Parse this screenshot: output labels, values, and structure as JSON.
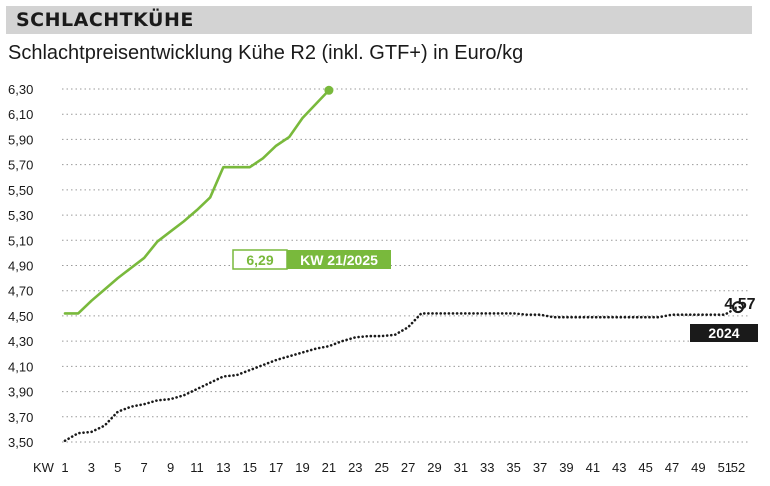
{
  "header": {
    "title": "SCHLACHTKÜHE"
  },
  "subtitle": "Schlachtpreisentwicklung Kühe R2 (inkl. GTF+) in Euro/kg",
  "colors": {
    "green": "#79b93c",
    "black": "#1a1a1a",
    "grid": "#9a9a9a",
    "header_bg": "#d3d3d3"
  },
  "chart_data": {
    "type": "line",
    "title": "",
    "xlabel": "KW",
    "ylabel": "",
    "xlim": [
      1,
      52
    ],
    "ylim": [
      3.5,
      6.3
    ],
    "grid": true,
    "y_ticks": [
      "3,50",
      "3,70",
      "3,90",
      "4,10",
      "4,30",
      "4,50",
      "4,70",
      "4,90",
      "5,10",
      "5,30",
      "5,50",
      "5,70",
      "5,90",
      "6,10",
      "6,30"
    ],
    "x_ticks": [
      "1",
      "3",
      "5",
      "7",
      "9",
      "11",
      "13",
      "15",
      "17",
      "19",
      "21",
      "23",
      "25",
      "27",
      "29",
      "31",
      "33",
      "35",
      "37",
      "39",
      "41",
      "43",
      "45",
      "47",
      "49",
      "51",
      "52"
    ],
    "series": [
      {
        "name": "2025",
        "style": "solid",
        "color": "#79b93c",
        "x": [
          1,
          2,
          3,
          4,
          5,
          6,
          7,
          8,
          9,
          10,
          11,
          12,
          13,
          14,
          15,
          16,
          17,
          18,
          19,
          20,
          21
        ],
        "y": [
          4.52,
          4.52,
          4.62,
          4.71,
          4.8,
          4.88,
          4.96,
          5.09,
          5.17,
          5.25,
          5.34,
          5.44,
          5.68,
          5.68,
          5.68,
          5.75,
          5.85,
          5.92,
          6.07,
          6.18,
          6.29
        ]
      },
      {
        "name": "2024",
        "style": "dotted",
        "color": "#1a1a1a",
        "x": [
          1,
          2,
          3,
          4,
          5,
          6,
          7,
          8,
          9,
          10,
          11,
          12,
          13,
          14,
          15,
          16,
          17,
          18,
          19,
          20,
          21,
          22,
          23,
          24,
          25,
          26,
          27,
          28,
          29,
          30,
          31,
          32,
          33,
          34,
          35,
          36,
          37,
          38,
          39,
          40,
          41,
          42,
          43,
          44,
          45,
          46,
          47,
          48,
          49,
          50,
          51,
          52
        ],
        "y": [
          3.51,
          3.57,
          3.58,
          3.63,
          3.74,
          3.78,
          3.8,
          3.83,
          3.84,
          3.87,
          3.92,
          3.97,
          4.02,
          4.03,
          4.07,
          4.11,
          4.15,
          4.18,
          4.21,
          4.24,
          4.26,
          4.3,
          4.33,
          4.34,
          4.34,
          4.35,
          4.41,
          4.52,
          4.52,
          4.52,
          4.52,
          4.52,
          4.52,
          4.52,
          4.52,
          4.51,
          4.51,
          4.49,
          4.49,
          4.49,
          4.49,
          4.49,
          4.49,
          4.49,
          4.49,
          4.49,
          4.51,
          4.51,
          4.51,
          4.51,
          4.51,
          4.57
        ]
      }
    ],
    "annotations": [
      {
        "series": "2025",
        "value": "6,29",
        "label": "KW 21/2025"
      },
      {
        "series": "2024",
        "value": "4,57",
        "label": "2024"
      }
    ]
  }
}
